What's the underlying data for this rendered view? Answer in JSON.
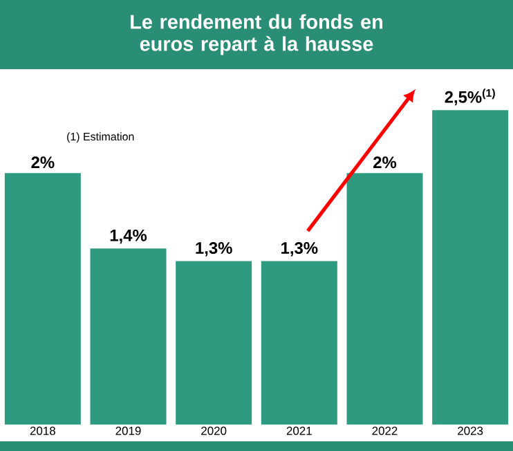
{
  "chart_data": {
    "type": "bar",
    "title": "Le rendement du fonds en euros repart à la hausse",
    "categories": [
      "2018",
      "2019",
      "2020",
      "2021",
      "2022",
      "2023"
    ],
    "values": [
      2,
      1.4,
      1.3,
      1.3,
      2,
      2.5
    ],
    "value_labels": [
      "2%",
      "1,4%",
      "1,3%",
      "1,3%",
      "2%",
      "2,5%$^{(1)}$"
    ],
    "color": "#2e9a80",
    "annotations": [
      "(1) Estimation"
    ]
  }
}
